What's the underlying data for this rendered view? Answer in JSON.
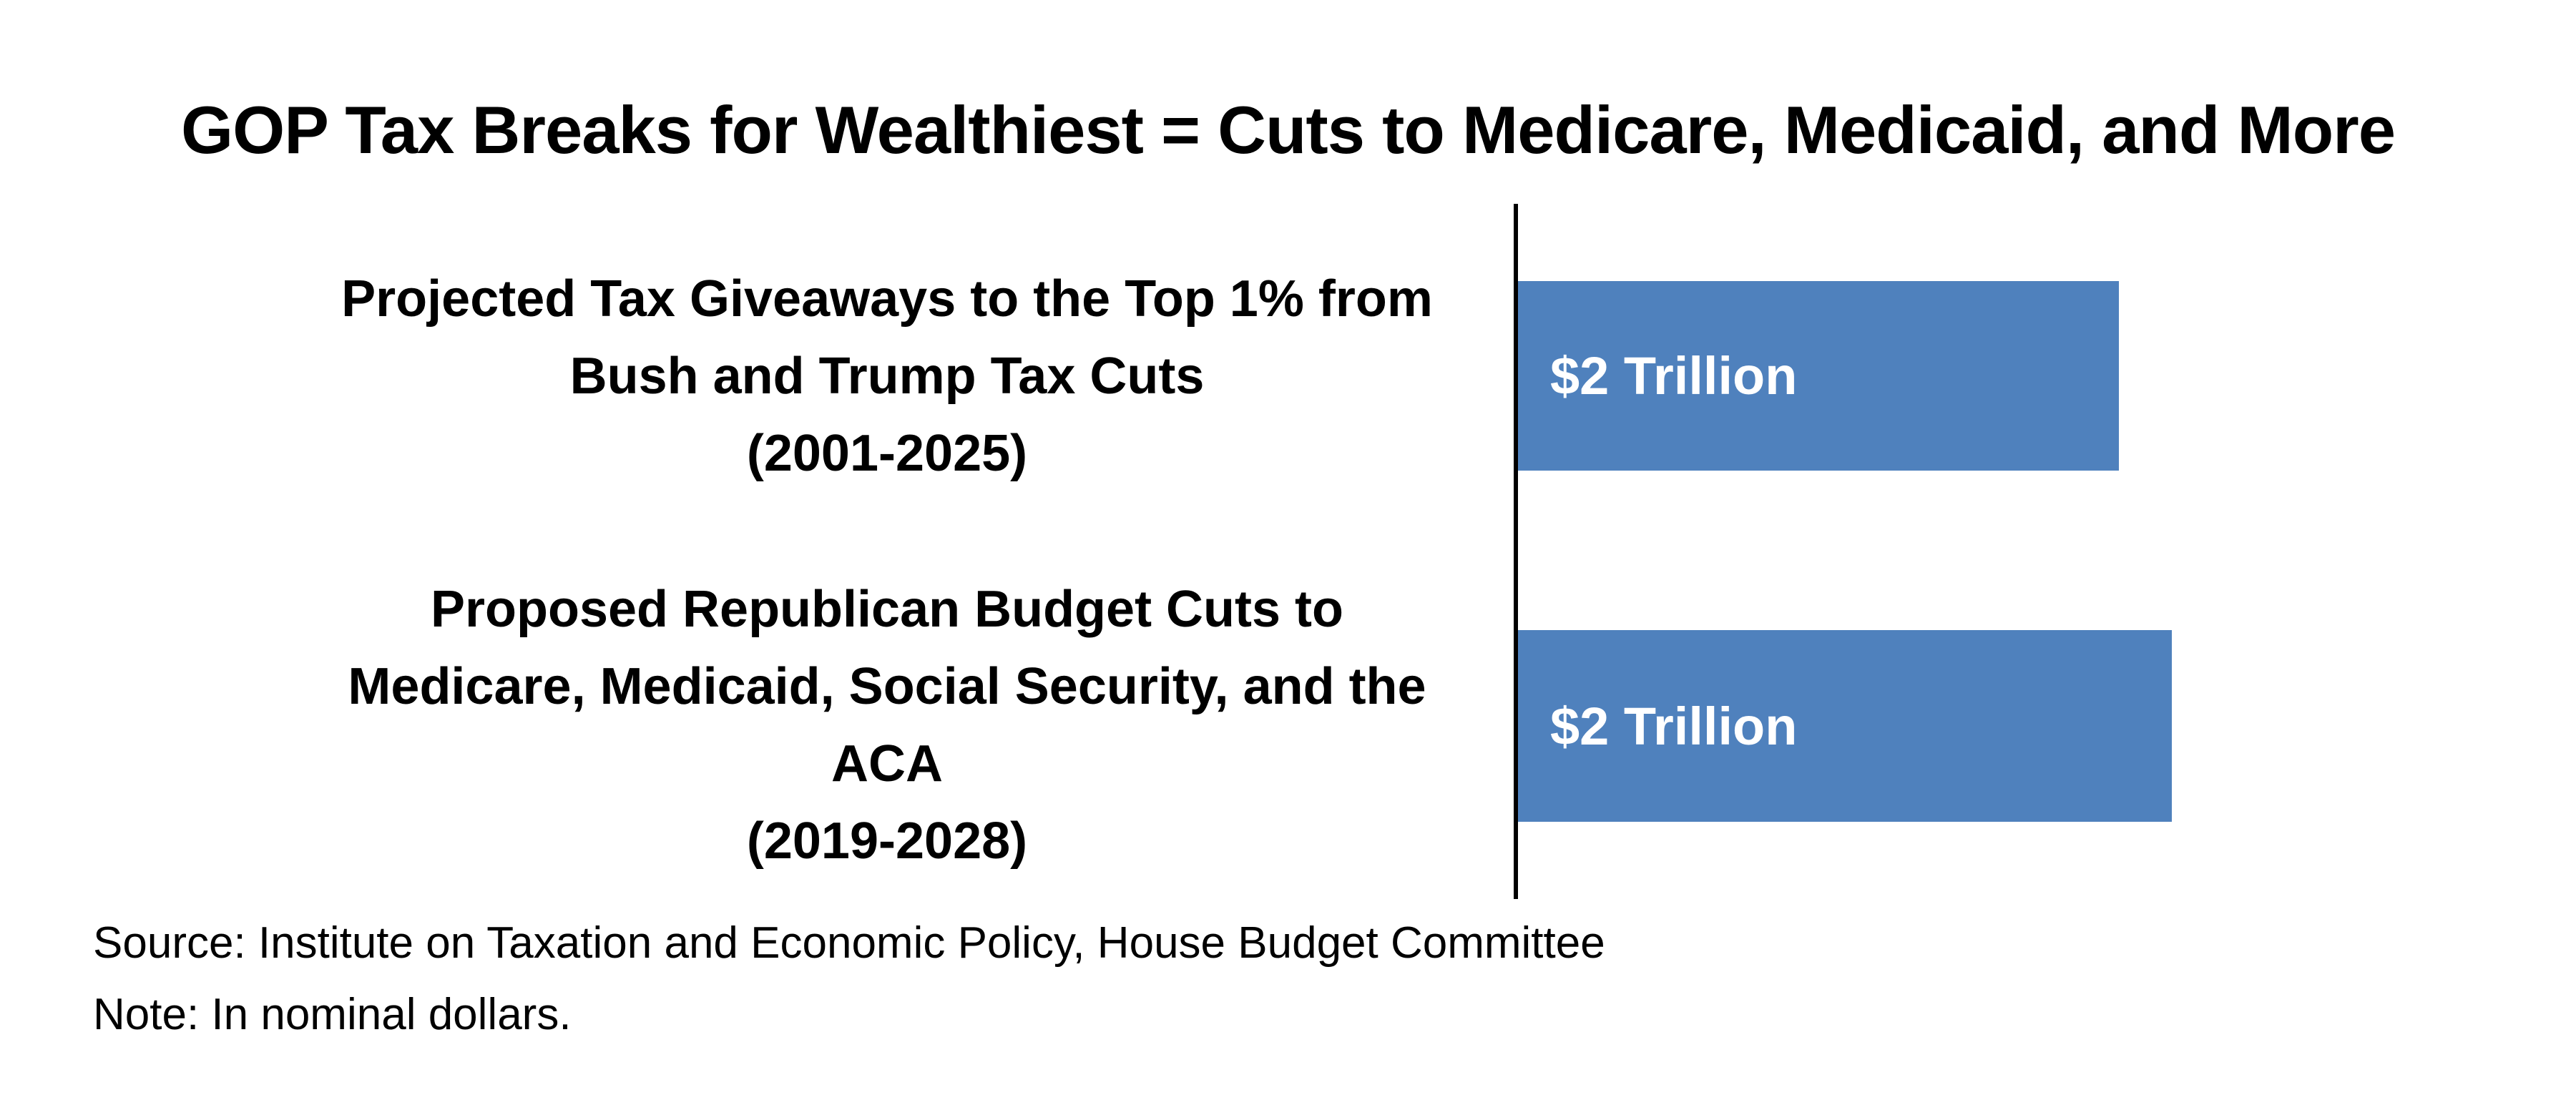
{
  "title": "GOP Tax Breaks for Wealthiest = Cuts to Medicare, Medicaid, and More",
  "source": "Source: Institute on Taxation and Economic Policy, House Budget Committee",
  "note": "Note: In nominal dollars.",
  "colors": {
    "background": "#FFFFFF",
    "bar": "#4F81BD",
    "axis": "#000000",
    "text": "#000000",
    "bar_label": "#FFFFFF"
  },
  "chart_data": {
    "type": "bar",
    "orientation": "horizontal",
    "title": "GOP Tax Breaks for Wealthiest = Cuts to Medicare, Medicaid, and More",
    "categories": [
      "Projected Tax Giveaways to the Top 1% from Bush and Trump Tax Cuts (2001-2025)",
      "Proposed Republican Budget Cuts to Medicare, Medicaid, Social Security, and the ACA (2019-2028)"
    ],
    "category_display": [
      "Projected Tax Giveaways to the Top 1% from\nBush and Trump Tax Cuts\n(2001-2025)",
      "Proposed Republican Budget Cuts to\nMedicare, Medicaid, Social Security, and the\nACA\n(2019-2028)"
    ],
    "values": [
      2,
      2
    ],
    "unit": "trillion nominal dollars",
    "bar_labels": [
      "$2 Trillion",
      "$2 Trillion"
    ],
    "bar_color": "#4F81BD",
    "bar_length_fractions": [
      0.568,
      0.618
    ],
    "xlabel": "",
    "ylabel": "",
    "grid": false,
    "legend": false
  }
}
